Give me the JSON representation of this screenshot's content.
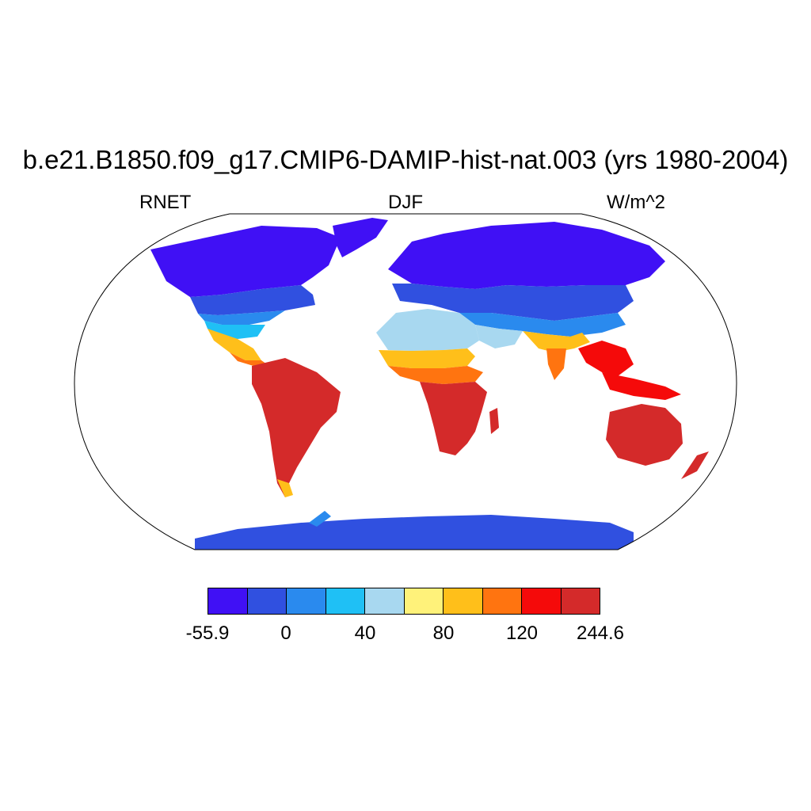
{
  "title": "b.e21.B1850.f09_g17.CMIP6-DAMIP-hist-nat.003 (yrs 1980-2004)",
  "left_label": "RNET",
  "center_label": "DJF",
  "right_label": "W/m^2",
  "colorbar": {
    "colors": [
      "#4010f5",
      "#3050e0",
      "#2a8aee",
      "#1fc0f5",
      "#a8d8f0",
      "#fff27a",
      "#ffbf1a",
      "#ff7410",
      "#f50a0a",
      "#d42a2a"
    ],
    "labels": [
      "-55.9",
      "0",
      "40",
      "80",
      "120",
      "244.6"
    ]
  },
  "map": {
    "projection": "Robinson",
    "variable": "RNET",
    "season": "DJF",
    "units": "W/m^2",
    "min": -55.9,
    "max": 244.6
  }
}
